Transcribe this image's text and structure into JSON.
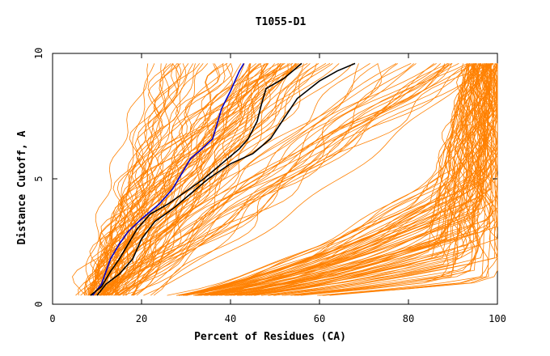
{
  "chart_data": {
    "type": "line",
    "title": "T1055-D1",
    "xlabel": "Percent of Residues (CA)",
    "ylabel": "Distance Cutoff, A",
    "xlim": [
      0,
      100
    ],
    "ylim": [
      0,
      10
    ],
    "xticks": [
      0,
      20,
      40,
      60,
      80,
      100
    ],
    "yticks": [
      0,
      5,
      10
    ],
    "grid": false,
    "colors": {
      "models": "#ff8000",
      "highlight_black": "#000000",
      "highlight_blue": "#0000cc"
    },
    "highlight_series": [
      {
        "color": "#0000cc",
        "points": [
          [
            9,
            0.35
          ],
          [
            11,
            0.8
          ],
          [
            12,
            1.3
          ],
          [
            13,
            1.8
          ],
          [
            15,
            2.4
          ],
          [
            17,
            2.9
          ],
          [
            20,
            3.4
          ],
          [
            24,
            4.0
          ],
          [
            27,
            4.6
          ],
          [
            29,
            5.2
          ],
          [
            31,
            5.8
          ],
          [
            33,
            6.1
          ],
          [
            36,
            6.6
          ],
          [
            37,
            7.2
          ],
          [
            38,
            7.8
          ],
          [
            40,
            8.5
          ],
          [
            42,
            9.3
          ],
          [
            43,
            9.6
          ]
        ]
      },
      {
        "color": "#000000",
        "points": [
          [
            8.5,
            0.35
          ],
          [
            11,
            0.7
          ],
          [
            13,
            1.3
          ],
          [
            15,
            1.8
          ],
          [
            17,
            2.4
          ],
          [
            19,
            3.0
          ],
          [
            22,
            3.6
          ],
          [
            26,
            4.0
          ],
          [
            30,
            4.5
          ],
          [
            34,
            5.0
          ],
          [
            38,
            5.6
          ],
          [
            42,
            6.2
          ],
          [
            44,
            6.6
          ],
          [
            46,
            7.3
          ],
          [
            47,
            8.0
          ],
          [
            48,
            8.6
          ],
          [
            52,
            9.0
          ],
          [
            56,
            9.6
          ]
        ]
      },
      {
        "color": "#000000",
        "points": [
          [
            10,
            0.35
          ],
          [
            12,
            0.8
          ],
          [
            15,
            1.2
          ],
          [
            18,
            1.8
          ],
          [
            20,
            2.6
          ],
          [
            23,
            3.3
          ],
          [
            27,
            3.8
          ],
          [
            31,
            4.4
          ],
          [
            35,
            5.0
          ],
          [
            40,
            5.6
          ],
          [
            45,
            6.0
          ],
          [
            49,
            6.6
          ],
          [
            52,
            7.4
          ],
          [
            55,
            8.2
          ],
          [
            60,
            8.9
          ],
          [
            64,
            9.3
          ],
          [
            68,
            9.6
          ]
        ]
      }
    ]
  }
}
